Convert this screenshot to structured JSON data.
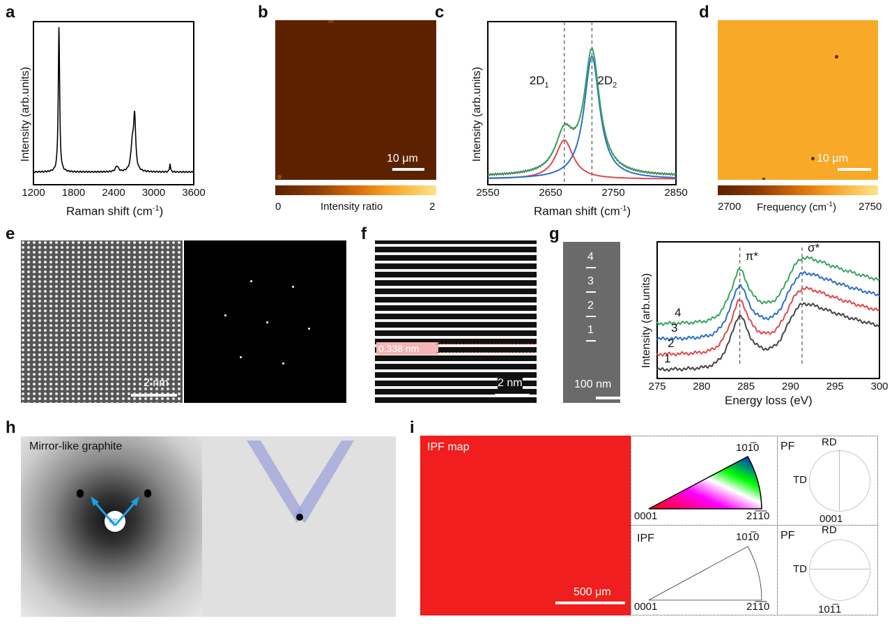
{
  "panels": {
    "a": "a",
    "b": "b",
    "c": "c",
    "d": "d",
    "e": "e",
    "f": "f",
    "g": "g",
    "h": "h",
    "i": "i"
  },
  "chart_data": [
    {
      "panel": "a",
      "type": "line",
      "xlabel": "Raman shift (cm",
      "xlabel_sup": "-1",
      "xlabel_end": ")",
      "ylabel": "Intensity (arb.units)",
      "xlim": [
        1200,
        3600
      ],
      "xticks": [
        "1200",
        "1800",
        "2400",
        "3000",
        "3600"
      ],
      "peaks": [
        {
          "center": 1582,
          "height": 1.0,
          "width": 12
        },
        {
          "center": 2450,
          "height": 0.04,
          "width": 25
        },
        {
          "center": 2680,
          "height": 0.18,
          "width": 25
        },
        {
          "center": 2715,
          "height": 0.36,
          "width": 18
        },
        {
          "center": 3245,
          "height": 0.06,
          "width": 8
        }
      ],
      "color": "#000000"
    },
    {
      "panel": "c",
      "type": "line",
      "xlabel": "Raman shift (cm",
      "xlabel_sup": "-1",
      "xlabel_end": ")",
      "ylabel": "Intensity (arb.units)",
      "xlim": [
        2550,
        2850
      ],
      "xticks": [
        "2550",
        "2650",
        "2750",
        "2850"
      ],
      "annotations": [
        {
          "text": "2D",
          "sub": "1",
          "x": 2672
        },
        {
          "text": "2D",
          "sub": "2",
          "x": 2716
        }
      ],
      "series": [
        {
          "component": "2D1",
          "center": 2672,
          "height": 0.28,
          "width": 17,
          "color": "#e0484a"
        },
        {
          "component": "2D2",
          "center": 2716,
          "height": 0.88,
          "width": 15,
          "color": "#2a6fc9"
        },
        {
          "component": "fit",
          "color": "#3aa55c"
        },
        {
          "component": "measured",
          "color": "#333333"
        }
      ]
    },
    {
      "panel": "g",
      "type": "line",
      "xlabel": "Energy loss (eV)",
      "ylabel": "Intensity (arb.units)",
      "xlim": [
        275,
        300
      ],
      "xticks": [
        "275",
        "280",
        "285",
        "290",
        "295",
        "300"
      ],
      "annotations": [
        {
          "text": "π*",
          "x": 284.3
        },
        {
          "text": "σ*",
          "x": 291.3
        }
      ],
      "series": [
        {
          "label": "1",
          "color": "#444444",
          "offset": 0
        },
        {
          "label": "2",
          "color": "#e0484a",
          "offset": 1
        },
        {
          "label": "3",
          "color": "#2a6fc9",
          "offset": 2
        },
        {
          "label": "4",
          "color": "#3aa55c",
          "offset": 3
        }
      ]
    }
  ],
  "b": {
    "scalebar": "10 μm",
    "cbar_min": "0",
    "cbar_label": "Intensity ratio",
    "cbar_max": "2",
    "map_color": "#5c2200"
  },
  "d": {
    "scalebar": "10 μm",
    "cbar_min": "2700",
    "cbar_label": "Frequency (cm",
    "cbar_sup": "-1",
    "cbar_end": ")",
    "cbar_max": "2750",
    "map_color": "#f8a928"
  },
  "e": {
    "scalebar": "2 nm"
  },
  "f": {
    "scalebar": "2 nm",
    "spacing": "0.338 nm"
  },
  "g": {
    "scalebar": "100 nm",
    "positions": [
      "4",
      "3",
      "2",
      "1"
    ]
  },
  "h": {
    "title": "Mirror-like graphite",
    "angle": "60°"
  },
  "i": {
    "map_label": "IPF map",
    "scalebar": "500 μm",
    "ipf_label": "IPF",
    "pf_label": "PF",
    "rd": "RD",
    "td": "TD",
    "pole_0001": "0001",
    "pole_1010": "101̅0",
    "pole_2110": "21̅1̅0",
    "pole_1011": "101̅1",
    "map_color": "#f01e1e"
  }
}
